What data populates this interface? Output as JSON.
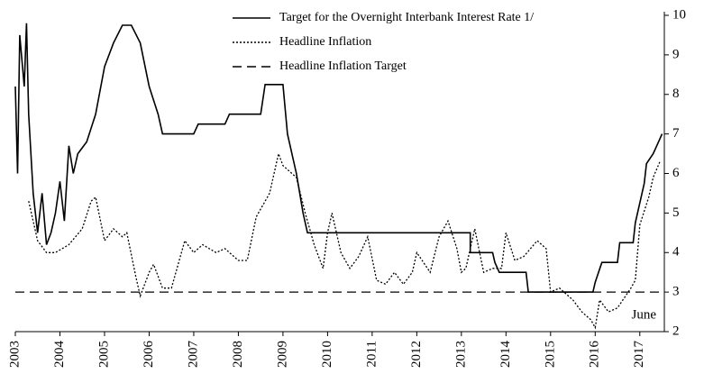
{
  "chart_data": {
    "type": "line",
    "annotations": [
      "June"
    ],
    "xlim": [
      2003,
      2017.55
    ],
    "xticks": [
      2003,
      2004,
      2005,
      2006,
      2007,
      2008,
      2009,
      2010,
      2011,
      2012,
      2013,
      2014,
      2015,
      2016,
      2017
    ],
    "ylim": [
      2,
      10
    ],
    "yticks": [
      2,
      3,
      4,
      5,
      6,
      7,
      8,
      9,
      10
    ],
    "y_axis_side": "right",
    "grid": false,
    "legend": "top",
    "series": [
      {
        "name": "Target for the Overnight Interbank Interest Rate 1/",
        "color": "#000000",
        "style": "solid",
        "x": [
          2003.0,
          2003.05,
          2003.1,
          2003.2,
          2003.25,
          2003.3,
          2003.4,
          2003.5,
          2003.6,
          2003.7,
          2003.8,
          2003.9,
          2004.0,
          2004.1,
          2004.2,
          2004.3,
          2004.4,
          2004.6,
          2004.8,
          2005.0,
          2005.2,
          2005.4,
          2005.6,
          2005.8,
          2006.0,
          2006.2,
          2006.3,
          2007.0,
          2007.1,
          2007.7,
          2007.8,
          2008.5,
          2008.6,
          2009.0,
          2009.1,
          2009.3,
          2009.45,
          2009.55,
          2013.2,
          2013.2,
          2013.7,
          2013.75,
          2013.85,
          2014.45,
          2014.5,
          2015.95,
          2016.0,
          2016.15,
          2016.5,
          2016.55,
          2016.85,
          2016.9,
          2017.1,
          2017.15,
          2017.3,
          2017.4,
          2017.5
        ],
        "values": [
          8.2,
          6.0,
          9.5,
          8.2,
          9.8,
          7.5,
          5.5,
          4.5,
          5.5,
          4.2,
          4.5,
          5.0,
          5.8,
          4.8,
          6.7,
          6.0,
          6.5,
          6.8,
          7.5,
          8.7,
          9.3,
          9.75,
          9.75,
          9.3,
          8.2,
          7.5,
          7.0,
          7.0,
          7.25,
          7.25,
          7.5,
          7.5,
          8.25,
          8.25,
          7.0,
          6.0,
          5.0,
          4.5,
          4.5,
          4.0,
          4.0,
          3.75,
          3.5,
          3.5,
          3.0,
          3.0,
          3.25,
          3.75,
          3.75,
          4.25,
          4.25,
          4.75,
          5.75,
          6.25,
          6.5,
          6.75,
          7.0
        ]
      },
      {
        "name": "Headline Inflation",
        "color": "#000000",
        "style": "dotted",
        "x": [
          2003.3,
          2003.5,
          2003.7,
          2003.9,
          2004.2,
          2004.5,
          2004.7,
          2004.8,
          2005.0,
          2005.2,
          2005.4,
          2005.5,
          2005.7,
          2005.8,
          2006.0,
          2006.1,
          2006.3,
          2006.5,
          2006.8,
          2007.0,
          2007.2,
          2007.5,
          2007.7,
          2008.0,
          2008.2,
          2008.4,
          2008.7,
          2008.9,
          2009.0,
          2009.3,
          2009.5,
          2009.7,
          2009.9,
          2010.0,
          2010.1,
          2010.3,
          2010.5,
          2010.7,
          2010.9,
          2011.1,
          2011.3,
          2011.5,
          2011.7,
          2011.9,
          2012.0,
          2012.3,
          2012.5,
          2012.7,
          2012.9,
          2013.0,
          2013.1,
          2013.3,
          2013.5,
          2013.7,
          2013.9,
          2014.0,
          2014.2,
          2014.4,
          2014.7,
          2014.9,
          2015.0,
          2015.2,
          2015.5,
          2015.7,
          2015.9,
          2016.0,
          2016.1,
          2016.3,
          2016.5,
          2016.8,
          2016.9,
          2017.0,
          2017.2,
          2017.3,
          2017.45
        ],
        "values": [
          5.3,
          4.3,
          4.0,
          4.0,
          4.2,
          4.6,
          5.3,
          5.4,
          4.3,
          4.6,
          4.4,
          4.5,
          3.4,
          2.9,
          3.5,
          3.7,
          3.1,
          3.1,
          4.3,
          4.0,
          4.2,
          4.0,
          4.1,
          3.8,
          3.8,
          4.9,
          5.5,
          6.5,
          6.2,
          5.9,
          5.0,
          4.2,
          3.6,
          4.5,
          5.0,
          4.0,
          3.6,
          3.9,
          4.4,
          3.3,
          3.2,
          3.5,
          3.2,
          3.5,
          4.0,
          3.5,
          4.4,
          4.8,
          4.1,
          3.5,
          3.6,
          4.6,
          3.5,
          3.6,
          3.6,
          4.5,
          3.8,
          3.9,
          4.3,
          4.1,
          3.0,
          3.1,
          2.8,
          2.5,
          2.3,
          2.1,
          2.8,
          2.5,
          2.6,
          3.1,
          3.3,
          4.7,
          5.4,
          5.9,
          6.3
        ]
      },
      {
        "name": "Headline Inflation Target",
        "color": "#000000",
        "style": "dashed",
        "x": [
          2003,
          2017.55
        ],
        "values": [
          3,
          3
        ]
      }
    ]
  }
}
